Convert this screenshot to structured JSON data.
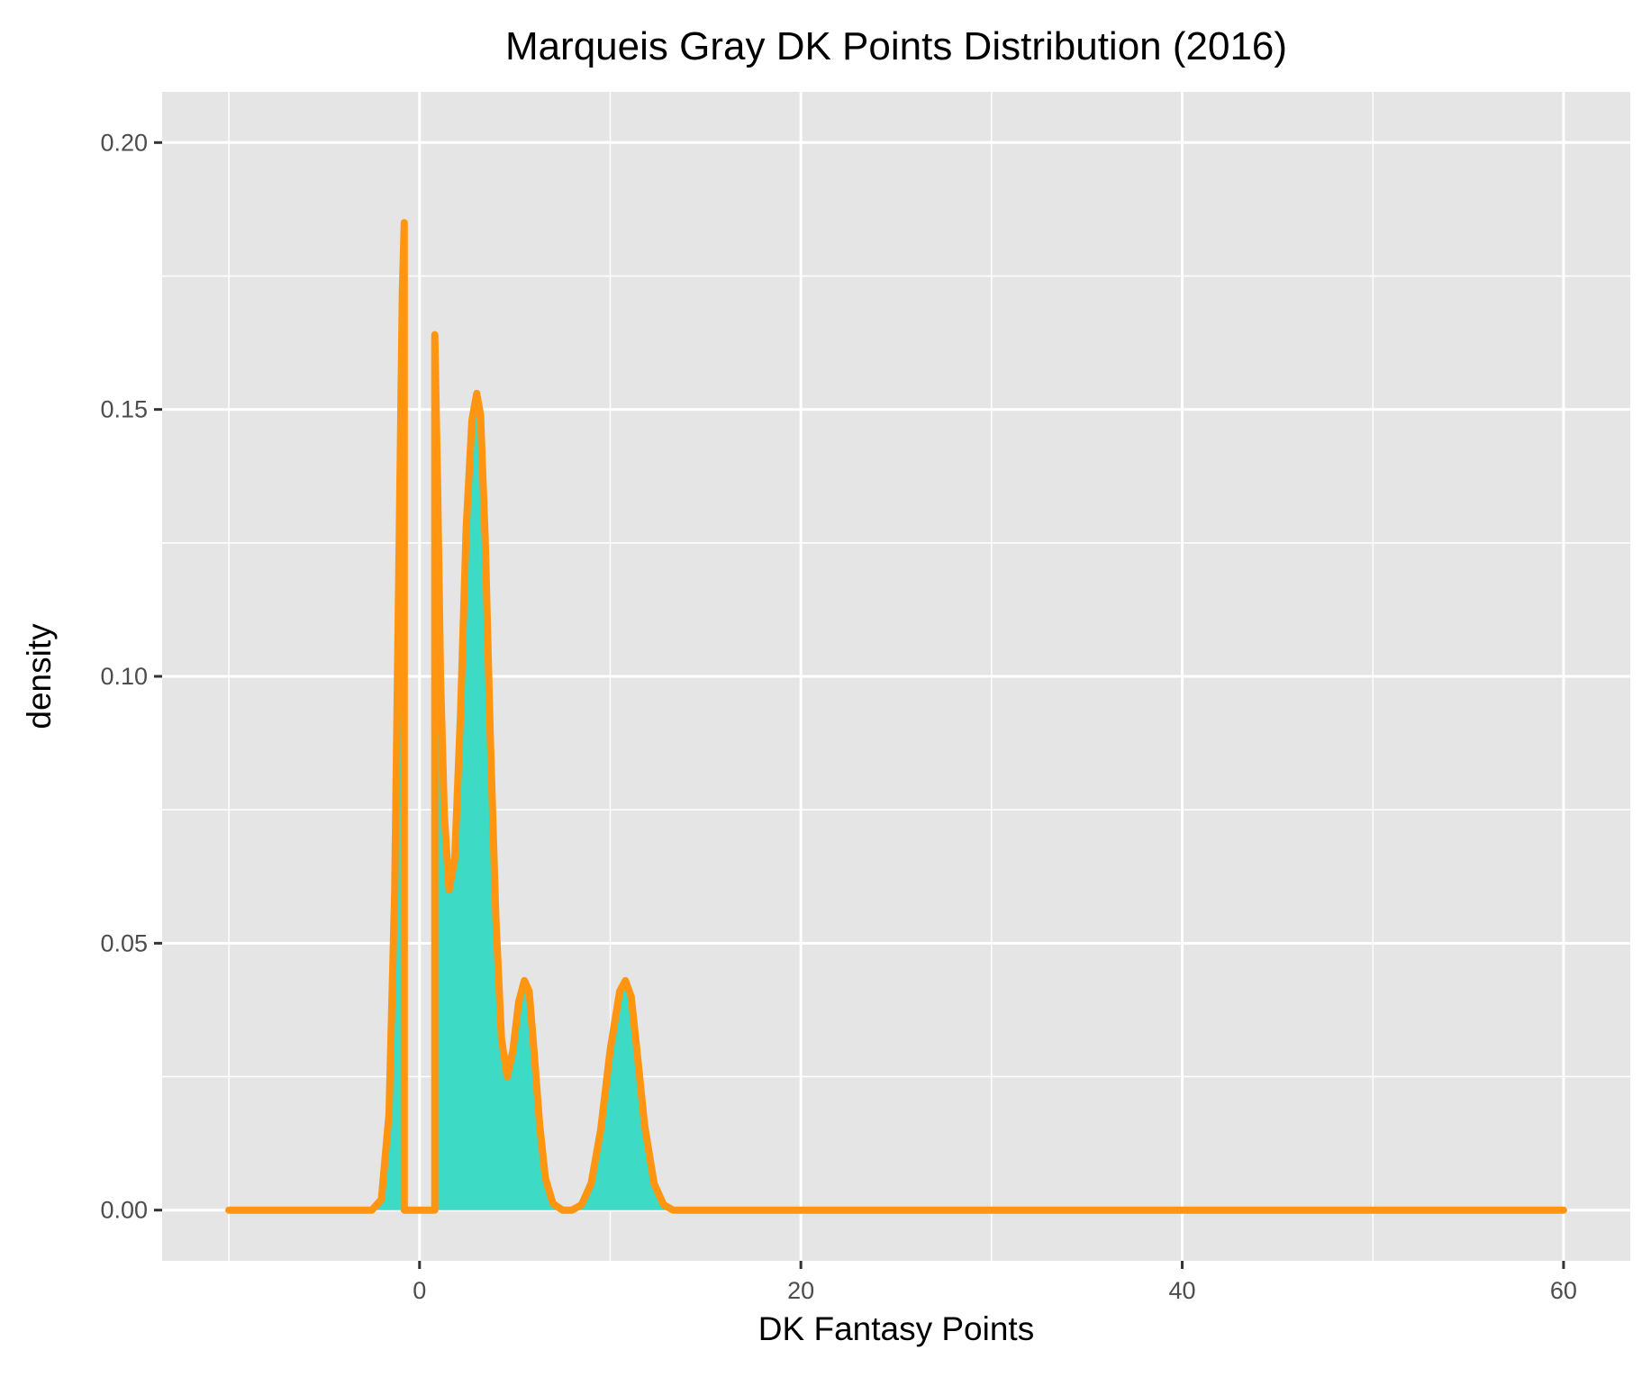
{
  "chart_data": {
    "type": "area",
    "title": "Marqueis Gray DK Points Distribution (2016)",
    "xlabel": "DK Fantasy Points",
    "ylabel": "density",
    "xlim": [
      -13.5,
      63.5
    ],
    "ylim": [
      -0.0095,
      0.2095
    ],
    "x_ticks": [
      0,
      20,
      40,
      60
    ],
    "x_tick_labels": [
      "0",
      "20",
      "40",
      "60"
    ],
    "y_ticks": [
      0.0,
      0.05,
      0.1,
      0.15,
      0.2
    ],
    "y_tick_labels": [
      "0.00",
      "0.05",
      "0.10",
      "0.15",
      "0.20"
    ],
    "grid": true,
    "legend": "none",
    "colors": {
      "panel_background": "#e5e5e5",
      "grid": "#ffffff",
      "fill": "#3ddbc5",
      "line": "#ff9510",
      "tick_mark": "#333333"
    },
    "series": [
      {
        "x": [
          -10,
          -2.5,
          -2.0,
          -1.6,
          -1.3,
          -1.05,
          -0.9,
          -0.8,
          -0.8,
          0.0,
          0.8,
          0.8,
          0.95,
          1.1,
          1.3,
          1.55,
          1.85,
          2.15,
          2.45,
          2.75,
          3.0,
          3.2,
          3.45,
          3.7,
          4.0,
          4.3,
          4.6,
          4.9,
          5.2,
          5.5,
          5.75,
          6.0,
          6.3,
          6.6,
          7.0,
          7.5,
          8.0,
          8.5,
          9.0,
          9.5,
          10.0,
          10.5,
          10.8,
          11.1,
          11.4,
          11.8,
          12.3,
          12.8,
          13.3,
          14.0,
          20,
          40,
          60
        ],
        "y": [
          0.0,
          0.0,
          0.002,
          0.018,
          0.06,
          0.13,
          0.172,
          0.185,
          0.0,
          0.0,
          0.0,
          0.164,
          0.135,
          0.1,
          0.074,
          0.06,
          0.066,
          0.093,
          0.128,
          0.148,
          0.153,
          0.149,
          0.125,
          0.09,
          0.055,
          0.032,
          0.025,
          0.03,
          0.039,
          0.043,
          0.041,
          0.03,
          0.016,
          0.006,
          0.0012,
          0.0,
          0.0,
          0.001,
          0.005,
          0.015,
          0.03,
          0.041,
          0.043,
          0.04,
          0.03,
          0.016,
          0.005,
          0.001,
          0.0,
          0.0,
          0.0,
          0.0,
          0.0
        ]
      }
    ]
  }
}
